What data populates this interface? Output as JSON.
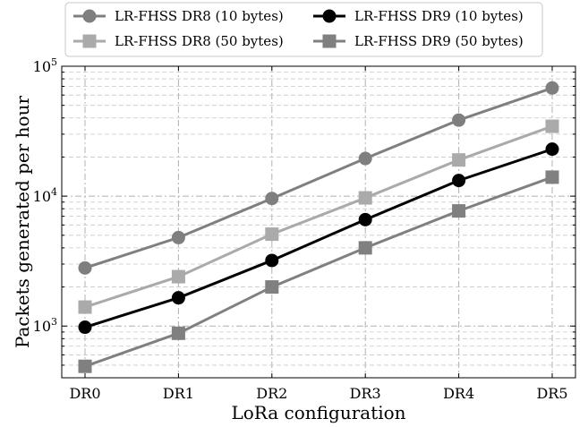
{
  "chart_data": {
    "type": "line",
    "xlabel": "LoRa configuration",
    "ylabel": "Packets generated per hour",
    "y_scale": "log",
    "ylim": [
      400,
      100000
    ],
    "y_ticks": [
      {
        "value": 1000,
        "base": "10",
        "exp": "3"
      },
      {
        "value": 10000,
        "base": "10",
        "exp": "4"
      },
      {
        "value": 100000,
        "base": "10",
        "exp": "5"
      }
    ],
    "categories": [
      "DR0",
      "DR1",
      "DR2",
      "DR3",
      "DR4",
      "DR5"
    ],
    "grid": true,
    "legend_position": "top (outside plot)",
    "series": [
      {
        "name": "LR-FHSS DR8 (10 bytes)",
        "values": [
          2800,
          4800,
          9600,
          19500,
          38500,
          68000
        ],
        "color": "#7f7f7f",
        "marker": "circle"
      },
      {
        "name": "LR-FHSS DR8 (50 bytes)",
        "values": [
          1400,
          2400,
          5100,
          9700,
          19000,
          34500
        ],
        "color": "#aaaaaa",
        "marker": "square"
      },
      {
        "name": "LR-FHSS DR9 (10 bytes)",
        "values": [
          980,
          1650,
          3200,
          6600,
          13200,
          23000
        ],
        "color": "#000000",
        "marker": "circle"
      },
      {
        "name": "LR-FHSS DR9 (50 bytes)",
        "values": [
          490,
          880,
          2000,
          4000,
          7700,
          14000
        ],
        "color": "#808080",
        "marker": "square"
      }
    ]
  }
}
